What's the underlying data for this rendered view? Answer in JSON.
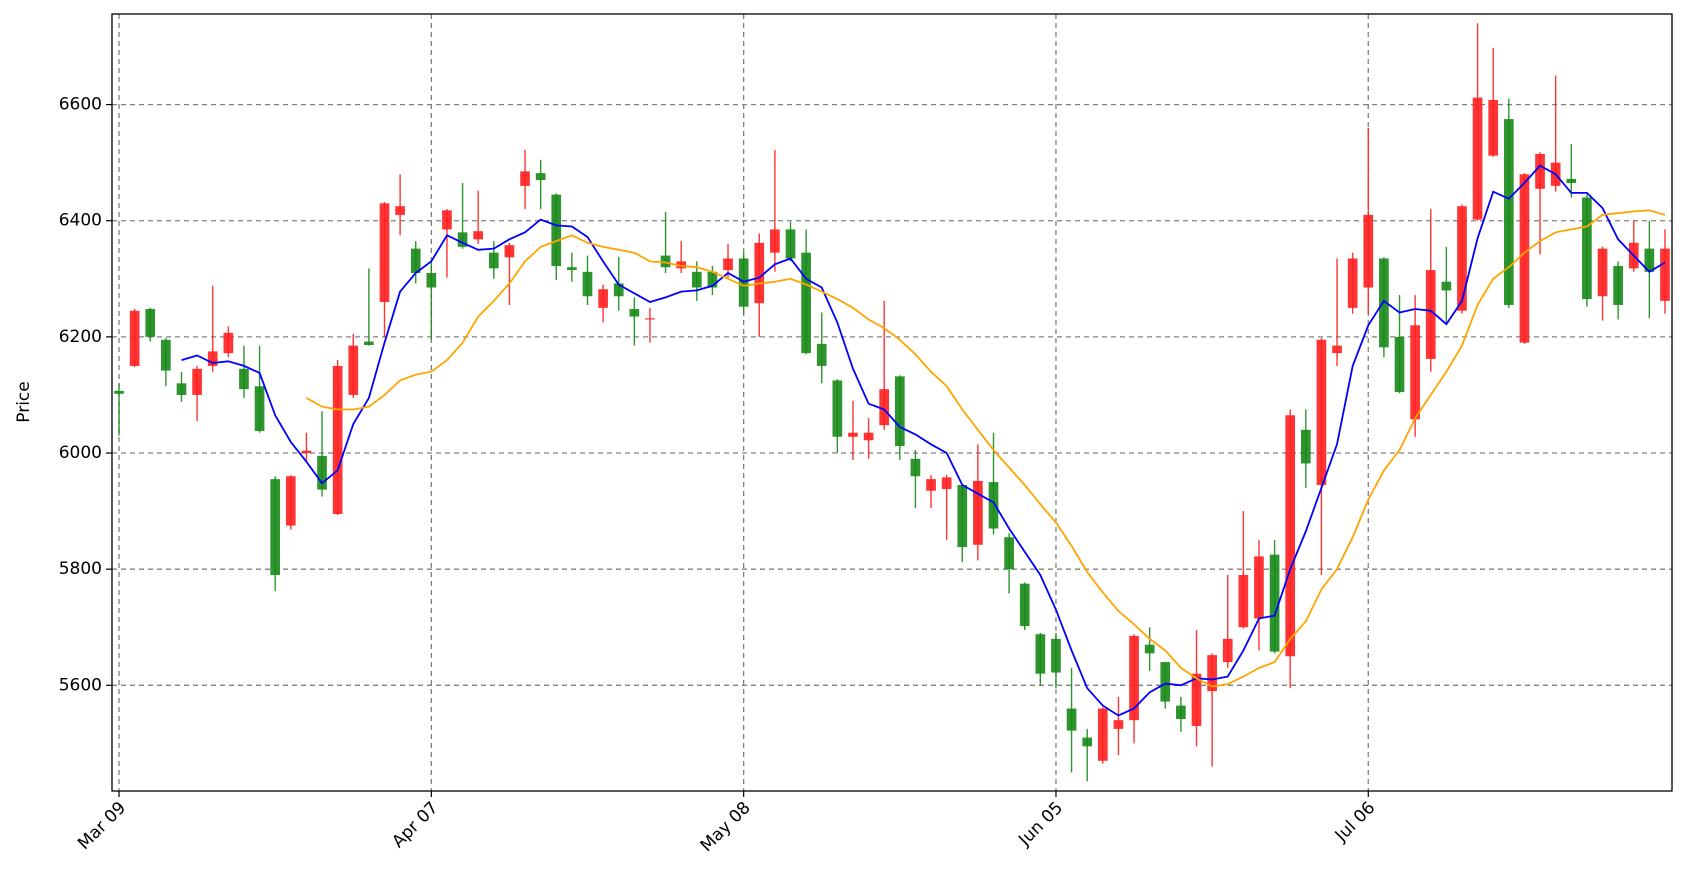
{
  "chart_data": {
    "type": "candlestick",
    "ylabel": "Price",
    "categories": [
      "Mar 09",
      null,
      null,
      null,
      null,
      null,
      null,
      null,
      null,
      null,
      null,
      null,
      null,
      null,
      null,
      null,
      null,
      null,
      null,
      null,
      "Apr 07",
      null,
      null,
      null,
      null,
      null,
      null,
      null,
      null,
      null,
      null,
      null,
      null,
      null,
      null,
      null,
      null,
      null,
      null,
      null,
      "May 08",
      null,
      null,
      null,
      null,
      null,
      null,
      null,
      null,
      null,
      null,
      null,
      null,
      null,
      null,
      null,
      null,
      null,
      null,
      null,
      "Jun 05",
      null,
      null,
      null,
      null,
      null,
      null,
      null,
      null,
      null,
      null,
      null,
      null,
      null,
      null,
      null,
      null,
      null,
      null,
      null,
      "Jul 06",
      null,
      null,
      null,
      null,
      null,
      null,
      null,
      null,
      null,
      null,
      null,
      null,
      null,
      null,
      null,
      null,
      null,
      null,
      null
    ],
    "open": [
      6107,
      6150,
      6248,
      6195,
      6120,
      6100,
      6150,
      6172,
      6145,
      6115,
      5955,
      5875,
      6000,
      5995,
      5895,
      6100,
      6192,
      6260,
      6410,
      6352,
      6310,
      6385,
      6380,
      6368,
      6345,
      6337,
      6460,
      6482,
      6445,
      6320,
      6312,
      6250,
      6292,
      6248,
      6230,
      6340,
      6318,
      6312,
      6312,
      6315,
      6335,
      6258,
      6345,
      6385,
      6345,
      6188,
      6125,
      6028,
      6022,
      6048,
      6132,
      5990,
      5935,
      5938,
      5945,
      5842,
      5950,
      5855,
      5775,
      5688,
      5680,
      5560,
      5510,
      5470,
      5525,
      5540,
      5670,
      5640,
      5565,
      5530,
      5590,
      5640,
      5700,
      5715,
      5825,
      5650,
      6040,
      5945,
      6172,
      6250,
      6285,
      6335,
      6200,
      6058,
      6162,
      6295,
      6245,
      6402,
      6512,
      6575,
      6190,
      6455,
      6460,
      6472,
      6440,
      6270,
      6322,
      6318,
      6352,
      6262
    ],
    "high": [
      6120,
      6248,
      6250,
      6198,
      6140,
      6150,
      6288,
      6218,
      6185,
      6185,
      5960,
      5962,
      6035,
      6072,
      6160,
      6205,
      6318,
      6432,
      6480,
      6365,
      6330,
      6420,
      6465,
      6452,
      6365,
      6362,
      6522,
      6505,
      6447,
      6345,
      6340,
      6290,
      6338,
      6268,
      6250,
      6415,
      6365,
      6330,
      6322,
      6360,
      6345,
      6378,
      6522,
      6398,
      6385,
      6242,
      6127,
      6090,
      6060,
      6262,
      6134,
      6005,
      5962,
      5962,
      5947,
      6015,
      6035,
      5862,
      5777,
      5690,
      5690,
      5630,
      5525,
      5562,
      5580,
      5688,
      5700,
      5640,
      5580,
      5695,
      5655,
      5790,
      5900,
      5850,
      5850,
      6075,
      6075,
      6198,
      6335,
      6345,
      6560,
      6337,
      6272,
      6272,
      6420,
      6355,
      6428,
      6740,
      6698,
      6610,
      6482,
      6518,
      6650,
      6532,
      6445,
      6355,
      6330,
      6400,
      6400,
      6385
    ],
    "low": [
      6030,
      6148,
      6192,
      6115,
      6088,
      6055,
      6140,
      6165,
      6095,
      6035,
      5762,
      5868,
      5985,
      5925,
      5893,
      6095,
      6185,
      6200,
      6375,
      6292,
      6195,
      6302,
      6352,
      6360,
      6300,
      6255,
      6420,
      6420,
      6298,
      6295,
      6255,
      6225,
      6245,
      6185,
      6190,
      6310,
      6310,
      6262,
      6272,
      6300,
      6240,
      6200,
      6312,
      6330,
      6170,
      6120,
      6000,
      5988,
      5990,
      6040,
      5988,
      5905,
      5905,
      5850,
      5812,
      5815,
      5860,
      5758,
      5695,
      5600,
      5595,
      5450,
      5435,
      5465,
      5480,
      5500,
      5625,
      5560,
      5520,
      5495,
      5460,
      5630,
      5698,
      5660,
      5655,
      5595,
      5940,
      5790,
      6150,
      6240,
      6240,
      6165,
      6103,
      6028,
      6140,
      6225,
      6240,
      6400,
      6510,
      6250,
      6188,
      6342,
      6450,
      6440,
      6252,
      6228,
      6230,
      6312,
      6232,
      6240
    ],
    "close": [
      6102,
      6245,
      6200,
      6142,
      6100,
      6145,
      6175,
      6207,
      6110,
      6038,
      5790,
      5960,
      6004,
      5937,
      6150,
      6185,
      6186,
      6430,
      6425,
      6310,
      6285,
      6418,
      6355,
      6382,
      6318,
      6358,
      6485,
      6470,
      6322,
      6315,
      6270,
      6282,
      6270,
      6235,
      6232,
      6320,
      6330,
      6285,
      6285,
      6335,
      6252,
      6362,
      6385,
      6335,
      6172,
      6150,
      6028,
      6035,
      6035,
      6110,
      6012,
      5960,
      5955,
      5958,
      5838,
      5952,
      5870,
      5800,
      5702,
      5620,
      5622,
      5522,
      5495,
      5560,
      5540,
      5685,
      5655,
      5572,
      5542,
      5620,
      5652,
      5680,
      5790,
      5822,
      5658,
      6065,
      5982,
      6195,
      6185,
      6335,
      6410,
      6182,
      6105,
      6220,
      6315,
      6280,
      6425,
      6612,
      6608,
      6255,
      6480,
      6515,
      6500,
      6465,
      6265,
      6352,
      6255,
      6362,
      6312,
      6352
    ],
    "up_color": "#ff1f1f",
    "down_color": "#178a17",
    "overlays": [
      {
        "color": "#0000ff",
        "values": [
          null,
          null,
          null,
          null,
          6160,
          6168,
          6155,
          6158,
          6150,
          6138,
          6065,
          6019,
          5985,
          5948,
          5970,
          6050,
          6095,
          6190,
          6278,
          6310,
          6330,
          6375,
          6362,
          6350,
          6352,
          6368,
          6380,
          6402,
          6392,
          6390,
          6372,
          6330,
          6290,
          6275,
          6260,
          6268,
          6278,
          6280,
          6288,
          6310,
          6295,
          6302,
          6325,
          6335,
          6300,
          6285,
          6225,
          6145,
          6085,
          6075,
          6045,
          6032,
          6015,
          6000,
          5945,
          5930,
          5915,
          5870,
          5830,
          5790,
          5730,
          5660,
          5595,
          5565,
          5548,
          5560,
          5588,
          5603,
          5600,
          5612,
          5610,
          5615,
          5660,
          5715,
          5720,
          5800,
          5865,
          5940,
          6015,
          6150,
          6220,
          6262,
          6242,
          6248,
          6245,
          6222,
          6262,
          6370,
          6450,
          6438,
          6465,
          6495,
          6480,
          6448,
          6448,
          6422,
          6368,
          6340,
          6312,
          6328
        ]
      },
      {
        "color": "#ffa500",
        "values": [
          null,
          null,
          null,
          null,
          null,
          null,
          null,
          null,
          null,
          null,
          null,
          null,
          6095,
          6080,
          6075,
          6075,
          6080,
          6100,
          6125,
          6135,
          6140,
          6160,
          6190,
          6235,
          6262,
          6292,
          6330,
          6355,
          6365,
          6375,
          6362,
          6355,
          6350,
          6345,
          6330,
          6328,
          6322,
          6320,
          6312,
          6300,
          6288,
          6292,
          6295,
          6300,
          6290,
          6278,
          6265,
          6250,
          6230,
          6215,
          6195,
          6170,
          6140,
          6115,
          6075,
          6040,
          6005,
          5975,
          5945,
          5912,
          5880,
          5840,
          5795,
          5760,
          5728,
          5705,
          5680,
          5660,
          5630,
          5612,
          5598,
          5602,
          5615,
          5630,
          5640,
          5680,
          5710,
          5765,
          5800,
          5855,
          5920,
          5970,
          6005,
          6060,
          6100,
          6140,
          6185,
          6255,
          6300,
          6320,
          6345,
          6365,
          6380,
          6385,
          6390,
          6410,
          6413,
          6416,
          6418,
          6410
        ]
      }
    ],
    "ylim": [
      5418,
      6756
    ],
    "yticks": [
      5600,
      5800,
      6000,
      6200,
      6400,
      6600
    ],
    "grid": true
  }
}
